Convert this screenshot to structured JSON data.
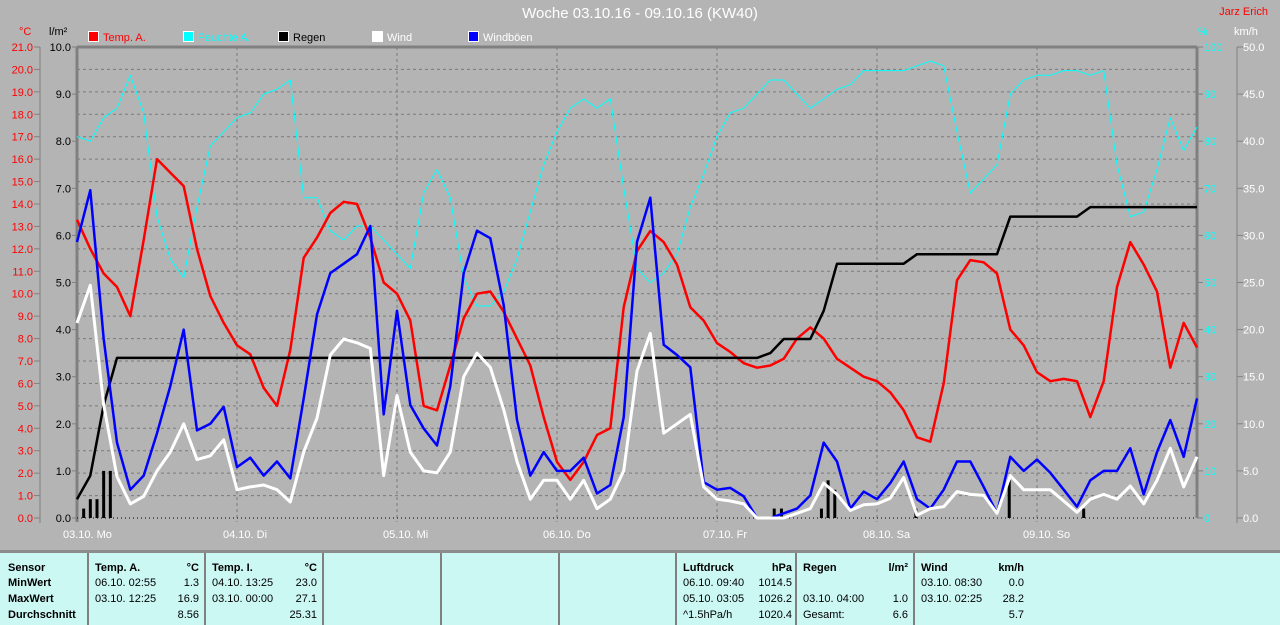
{
  "header": {
    "title": "Woche 03.10.16 - 09.10.16 (KW40)",
    "author": "Jarz Erich"
  },
  "colors": {
    "temp": "#ff0000",
    "humidity": "#00ffff",
    "rain": "#000000",
    "wind": "#ffffff",
    "gusts": "#0000ff",
    "background": "#b4b4b4",
    "table": "#ccf8f4"
  },
  "chart_data": {
    "type": "line",
    "title": "Woche 03.10.16 - 09.10.16 (KW40)",
    "grid": true,
    "legend_position": "top-left",
    "axes": {
      "temp": {
        "unit": "°C",
        "range": [
          0,
          21
        ],
        "ticks": [
          "0.0",
          "1.0",
          "2.0",
          "3.0",
          "4.0",
          "5.0",
          "6.0",
          "7.0",
          "8.0",
          "9.0",
          "10.0",
          "11.0",
          "12.0",
          "13.0",
          "14.0",
          "15.0",
          "16.0",
          "17.0",
          "18.0",
          "19.0",
          "20.0",
          "21.0"
        ]
      },
      "rain": {
        "unit": "l/m²",
        "range": [
          0,
          10
        ],
        "ticks": [
          "0.0",
          "1.0",
          "2.0",
          "3.0",
          "4.0",
          "5.0",
          "6.0",
          "7.0",
          "8.0",
          "9.0",
          "10.0"
        ]
      },
      "humidity": {
        "unit": "%",
        "range": [
          0,
          100
        ],
        "ticks": [
          "0",
          "10",
          "20",
          "30",
          "40",
          "50",
          "60",
          "70",
          "80",
          "90",
          "100"
        ]
      },
      "wind": {
        "unit": "km/h",
        "range": [
          0,
          50
        ],
        "ticks": [
          "0.0",
          "5.0",
          "10.0",
          "15.0",
          "20.0",
          "25.0",
          "30.0",
          "35.0",
          "40.0",
          "45.0",
          "50.0"
        ]
      }
    },
    "x_ticks": [
      "03.10.  Mo",
      "04.10.  Di",
      "05.10.  Mi",
      "06.10.  Do",
      "07.10.  Fr",
      "08.10.  Sa",
      "09.10.  So"
    ],
    "x": [
      "03.10. 00:00",
      "03.10. 02:00",
      "03.10. 04:00",
      "03.10. 06:00",
      "03.10. 08:00",
      "03.10. 10:00",
      "03.10. 12:00",
      "03.10. 14:00",
      "03.10. 16:00",
      "03.10. 18:00",
      "03.10. 20:00",
      "03.10. 22:00",
      "04.10. 00:00",
      "04.10. 02:00",
      "04.10. 04:00",
      "04.10. 06:00",
      "04.10. 08:00",
      "04.10. 10:00",
      "04.10. 12:00",
      "04.10. 14:00",
      "04.10. 16:00",
      "04.10. 18:00",
      "04.10. 20:00",
      "04.10. 22:00",
      "05.10. 00:00",
      "05.10. 02:00",
      "05.10. 04:00",
      "05.10. 06:00",
      "05.10. 08:00",
      "05.10. 10:00",
      "05.10. 12:00",
      "05.10. 14:00",
      "05.10. 16:00",
      "05.10. 18:00",
      "05.10. 20:00",
      "05.10. 22:00",
      "06.10. 00:00",
      "06.10. 02:00",
      "06.10. 04:00",
      "06.10. 06:00",
      "06.10. 08:00",
      "06.10. 10:00",
      "06.10. 12:00",
      "06.10. 14:00",
      "06.10. 16:00",
      "06.10. 18:00",
      "06.10. 20:00",
      "06.10. 22:00",
      "07.10. 00:00",
      "07.10. 02:00",
      "07.10. 04:00",
      "07.10. 06:00",
      "07.10. 08:00",
      "07.10. 10:00",
      "07.10. 12:00",
      "07.10. 14:00",
      "07.10. 16:00",
      "07.10. 18:00",
      "07.10. 20:00",
      "07.10. 22:00",
      "08.10. 00:00",
      "08.10. 02:00",
      "08.10. 04:00",
      "08.10. 06:00",
      "08.10. 08:00",
      "08.10. 10:00",
      "08.10. 12:00",
      "08.10. 14:00",
      "08.10. 16:00",
      "08.10. 18:00",
      "08.10. 20:00",
      "08.10. 22:00",
      "09.10. 00:00",
      "09.10. 02:00",
      "09.10. 04:00",
      "09.10. 06:00",
      "09.10. 08:00",
      "09.10. 10:00",
      "09.10. 12:00",
      "09.10. 14:00",
      "09.10. 16:00",
      "09.10. 18:00",
      "09.10. 20:00",
      "09.10. 22:00",
      "10.10. 00:00"
    ],
    "series": [
      {
        "name": "Feuchte A.",
        "key": "humidity",
        "axis": "humidity",
        "values": [
          81,
          80,
          85,
          87,
          94,
          86,
          64,
          55,
          51,
          66,
          79,
          82,
          85,
          86,
          90,
          91,
          93,
          68,
          68,
          61,
          59,
          62,
          62,
          59,
          56,
          53,
          69,
          74,
          68,
          51,
          45,
          45,
          48,
          55,
          65,
          75,
          82,
          87,
          89,
          87,
          89,
          70,
          53,
          50,
          52,
          56,
          66,
          73,
          81,
          86,
          87,
          90,
          93,
          93,
          90,
          87,
          89,
          91,
          92,
          95,
          95,
          95,
          95,
          96,
          97,
          96,
          82,
          69,
          72,
          75,
          90,
          93,
          94,
          94,
          95,
          95,
          94,
          95,
          75,
          64,
          65,
          74,
          85,
          78,
          83
        ]
      },
      {
        "name": "Temp. A.",
        "key": "temp",
        "axis": "temp",
        "values": [
          13.3,
          12.0,
          10.9,
          10.3,
          9.0,
          12.4,
          16.0,
          15.4,
          14.8,
          12.0,
          9.9,
          8.7,
          7.7,
          7.3,
          5.8,
          5.0,
          7.5,
          11.6,
          12.5,
          13.6,
          14.1,
          14.0,
          12.5,
          10.5,
          10.0,
          8.8,
          5.0,
          4.8,
          6.8,
          8.9,
          10.0,
          10.1,
          9.2,
          8.0,
          6.8,
          4.5,
          2.5,
          1.7,
          2.5,
          3.7,
          4.0,
          9.4,
          11.9,
          12.8,
          12.3,
          11.3,
          9.4,
          8.8,
          7.8,
          7.4,
          6.9,
          6.7,
          6.8,
          7.1,
          8.0,
          8.5,
          8.0,
          7.1,
          6.7,
          6.3,
          6.1,
          5.6,
          4.8,
          3.6,
          3.4,
          6.0,
          10.6,
          11.5,
          11.4,
          10.9,
          8.4,
          7.7,
          6.5,
          6.1,
          6.2,
          6.1,
          4.5,
          6.1,
          10.3,
          12.3,
          11.3,
          10.1,
          6.7,
          8.7,
          7.6
        ]
      },
      {
        "name": "Regen",
        "key": "rain",
        "axis": "rain",
        "values": [
          0.4,
          0.9,
          2.4,
          3.4,
          3.4,
          3.4,
          3.4,
          3.4,
          3.4,
          3.4,
          3.4,
          3.4,
          3.4,
          3.4,
          3.4,
          3.4,
          3.4,
          3.4,
          3.4,
          3.4,
          3.4,
          3.4,
          3.4,
          3.4,
          3.4,
          3.4,
          3.4,
          3.4,
          3.4,
          3.4,
          3.4,
          3.4,
          3.4,
          3.4,
          3.4,
          3.4,
          3.4,
          3.4,
          3.4,
          3.4,
          3.4,
          3.4,
          3.4,
          3.4,
          3.4,
          3.4,
          3.4,
          3.4,
          3.4,
          3.4,
          3.4,
          3.4,
          3.5,
          3.8,
          3.8,
          3.8,
          4.4,
          5.4,
          5.4,
          5.4,
          5.4,
          5.4,
          5.4,
          5.6,
          5.6,
          5.6,
          5.6,
          5.6,
          5.6,
          5.6,
          6.4,
          6.4,
          6.4,
          6.4,
          6.4,
          6.4,
          6.6,
          6.6,
          6.6,
          6.6,
          6.6,
          6.6,
          6.6,
          6.6,
          6.6
        ]
      },
      {
        "name": "Windböen",
        "key": "gusts",
        "axis": "wind",
        "values": [
          29.3,
          34.8,
          19,
          8,
          3,
          4.5,
          9,
          14,
          20,
          9.3,
          10,
          11.8,
          5.4,
          6.4,
          4.5,
          6,
          4.2,
          12.7,
          21.6,
          26,
          27,
          28,
          31,
          11,
          22,
          12,
          9.5,
          7.7,
          14,
          26,
          30.5,
          29.7,
          22.6,
          10.4,
          4.5,
          7,
          5,
          5,
          6.4,
          2.6,
          3.5,
          10.7,
          29.3,
          34,
          18.4,
          17.3,
          16,
          3.8,
          3,
          3.2,
          2.3,
          0,
          0,
          0.5,
          1,
          2.4,
          8,
          6,
          1,
          2.8,
          2,
          3.7,
          6,
          2,
          1,
          3,
          6,
          6,
          3.3,
          0.5,
          6.5,
          5,
          6.2,
          4.8,
          3,
          1.2,
          4,
          5,
          5,
          7.4,
          2.5,
          7,
          10.4,
          6.5,
          12.7
        ]
      },
      {
        "name": "Wind",
        "key": "wind",
        "axis": "wind",
        "values": [
          20.7,
          24.7,
          12,
          4.4,
          1.5,
          2.3,
          5,
          7,
          10,
          6.2,
          6.6,
          8.3,
          3,
          3.3,
          3.5,
          3,
          1.7,
          7,
          10.6,
          17.3,
          19,
          18.6,
          18,
          4.5,
          13,
          7,
          5,
          4.8,
          7,
          15,
          17.5,
          16,
          11.5,
          6,
          2,
          4,
          4,
          2,
          4,
          1,
          2,
          5,
          15.6,
          19.6,
          9,
          10,
          11,
          3.3,
          2,
          1.8,
          1.5,
          0,
          0,
          0,
          0.5,
          1,
          3.7,
          2.5,
          0.8,
          1.4,
          1.5,
          2.1,
          4.3,
          0.3,
          1,
          1.2,
          2.8,
          2.5,
          2.4,
          0.5,
          4.5,
          3,
          3,
          3,
          1.8,
          0.6,
          2,
          2.5,
          2,
          3.4,
          1.5,
          4,
          7.4,
          3.3,
          6.5
        ]
      }
    ],
    "rain_bars": [
      {
        "time": "03.10. 01:00",
        "value": 0.2
      },
      {
        "time": "03.10. 02:00",
        "value": 0.4
      },
      {
        "time": "03.10. 03:00",
        "value": 0.4
      },
      {
        "time": "03.10. 04:00",
        "value": 1.0
      },
      {
        "time": "03.10. 05:00",
        "value": 1.0
      },
      {
        "time": "07.10. 08:35",
        "value": 0.2
      },
      {
        "time": "07.10. 09:40",
        "value": 0.2
      },
      {
        "time": "07.10. 15:40",
        "value": 0.2
      },
      {
        "time": "07.10. 16:40",
        "value": 0.8
      },
      {
        "time": "07.10. 17:40",
        "value": 0.6
      },
      {
        "time": "08.10. 05:50",
        "value": 0.2
      },
      {
        "time": "08.10. 19:50",
        "value": 0.8
      },
      {
        "time": "09.10. 07:00",
        "value": 0.2
      }
    ]
  },
  "legend": [
    {
      "label": "Temp. A.",
      "color": "#ff0000"
    },
    {
      "label": "Feuchte A.",
      "color": "#00ffff"
    },
    {
      "label": "Regen",
      "color": "#000000"
    },
    {
      "label": "Wind",
      "color": "#ffffff"
    },
    {
      "label": "Windböen",
      "color": "#0000ff"
    }
  ],
  "units": {
    "temp": "°C",
    "rain": "l/m²",
    "humidity": "%",
    "wind": "km/h"
  },
  "table": {
    "row_labels": [
      "Sensor",
      "MinWert",
      "MaxWert",
      "Durchschnitt"
    ],
    "temp_a": {
      "title": "Temp. A.",
      "unit": "°C",
      "min_time": "06.10.  02:55",
      "min": "1.3",
      "max_time": "03.10.  12:25",
      "max": "16.9",
      "avg": "8.56"
    },
    "temp_i": {
      "title": "Temp. I.",
      "unit": "°C",
      "min_time": "04.10.  13:25",
      "min": "23.0",
      "max_time": "03.10.  00:00",
      "max": "27.1",
      "avg": "25.31"
    },
    "pressure": {
      "title": "Luftdruck",
      "unit": "hPa",
      "min_time": "06.10.  09:40",
      "min": "1014.5",
      "max_time": "05.10.  03:05",
      "max": "1026.2",
      "trend": "^1.5hPa/h",
      "avg": "1020.4"
    },
    "rain": {
      "title": "Regen",
      "unit": "l/m²",
      "max_time": "03.10.  04:00",
      "max": "1.0",
      "total_label": "Gesamt:",
      "total": "6.6"
    },
    "wind": {
      "title": "Wind",
      "unit": "km/h",
      "min_time": "03.10.  08:30",
      "min": "0.0",
      "max_time": "03.10.  02:25",
      "max": "28.2",
      "avg": "5.7"
    }
  }
}
